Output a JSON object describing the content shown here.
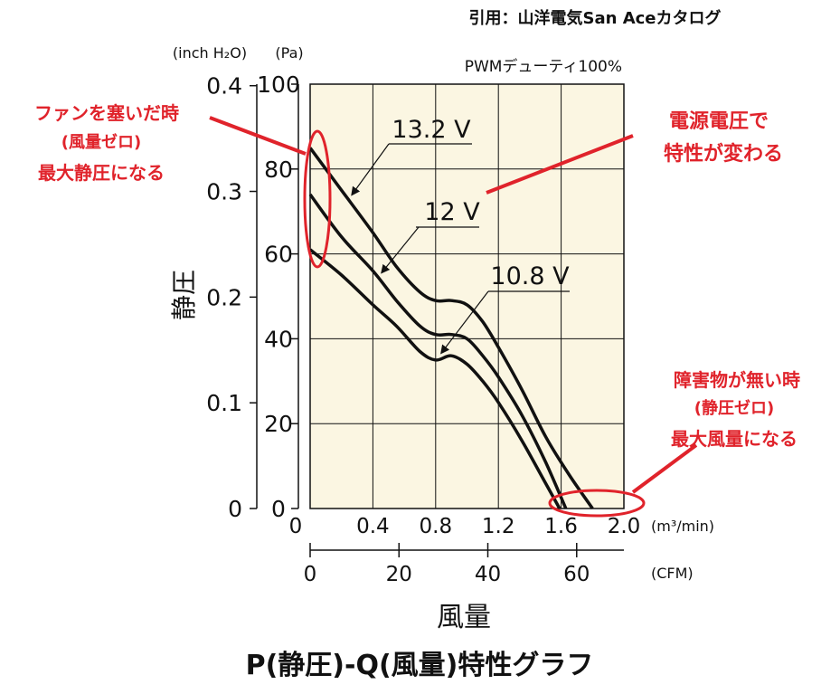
{
  "citation": "引用：山洋電気San Aceカタログ",
  "condition": "PWMデューティ100%",
  "annotations": {
    "zero_flow": [
      "ファンを塞いだ時",
      "(風量ゼロ)",
      "最大静圧になる"
    ],
    "voltage": [
      "電源電圧で",
      "特性が変わる"
    ],
    "zero_pressure": [
      "障害物が無い時",
      "(静圧ゼロ)",
      "最大風量になる"
    ]
  },
  "colors": {
    "plot_bg": "#fbf6e2",
    "annotation": "#e0232b",
    "line": "#111111"
  },
  "chart_data": {
    "type": "line",
    "title": "P(静圧)-Q(風量)特性グラフ",
    "xlabel": "風量",
    "ylabel": "静圧",
    "x_unit": "(m³/min)",
    "x2_unit": "(CFM)",
    "y_unit": "(Pa)",
    "y2_unit": "(inch H₂O)",
    "xlim": [
      0,
      2.0
    ],
    "ylim": [
      0,
      100
    ],
    "x_ticks": [
      "0",
      "0.4",
      "0.8",
      "1.2",
      "1.6",
      "2.0"
    ],
    "x2_ticks": [
      "0",
      "20",
      "40",
      "60"
    ],
    "y_ticks": [
      "0",
      "20",
      "40",
      "60",
      "80",
      "100"
    ],
    "y2_ticks": [
      "0",
      "0.1",
      "0.2",
      "0.3",
      "0.4"
    ],
    "grid": true,
    "series": [
      {
        "name": "13.2 V",
        "x": [
          0,
          0.2,
          0.4,
          0.55,
          0.7,
          0.8,
          0.9,
          1.0,
          1.1,
          1.2,
          1.35,
          1.5,
          1.65,
          1.8
        ],
        "y": [
          85,
          75,
          65,
          57,
          51,
          49,
          49,
          48,
          44,
          38,
          28,
          17,
          8,
          0
        ]
      },
      {
        "name": "12 V",
        "x": [
          0,
          0.2,
          0.4,
          0.55,
          0.7,
          0.8,
          0.9,
          1.0,
          1.1,
          1.2,
          1.35,
          1.5,
          1.63
        ],
        "y": [
          74,
          64,
          56,
          49,
          43,
          41,
          41,
          40,
          36,
          31,
          22,
          11,
          0
        ]
      },
      {
        "name": "10.8 V",
        "x": [
          0,
          0.2,
          0.4,
          0.55,
          0.7,
          0.8,
          0.9,
          1.0,
          1.1,
          1.2,
          1.35,
          1.5,
          1.59
        ],
        "y": [
          61,
          55,
          48,
          43,
          37,
          35,
          36,
          34,
          30,
          25,
          16,
          6,
          0
        ]
      }
    ]
  }
}
